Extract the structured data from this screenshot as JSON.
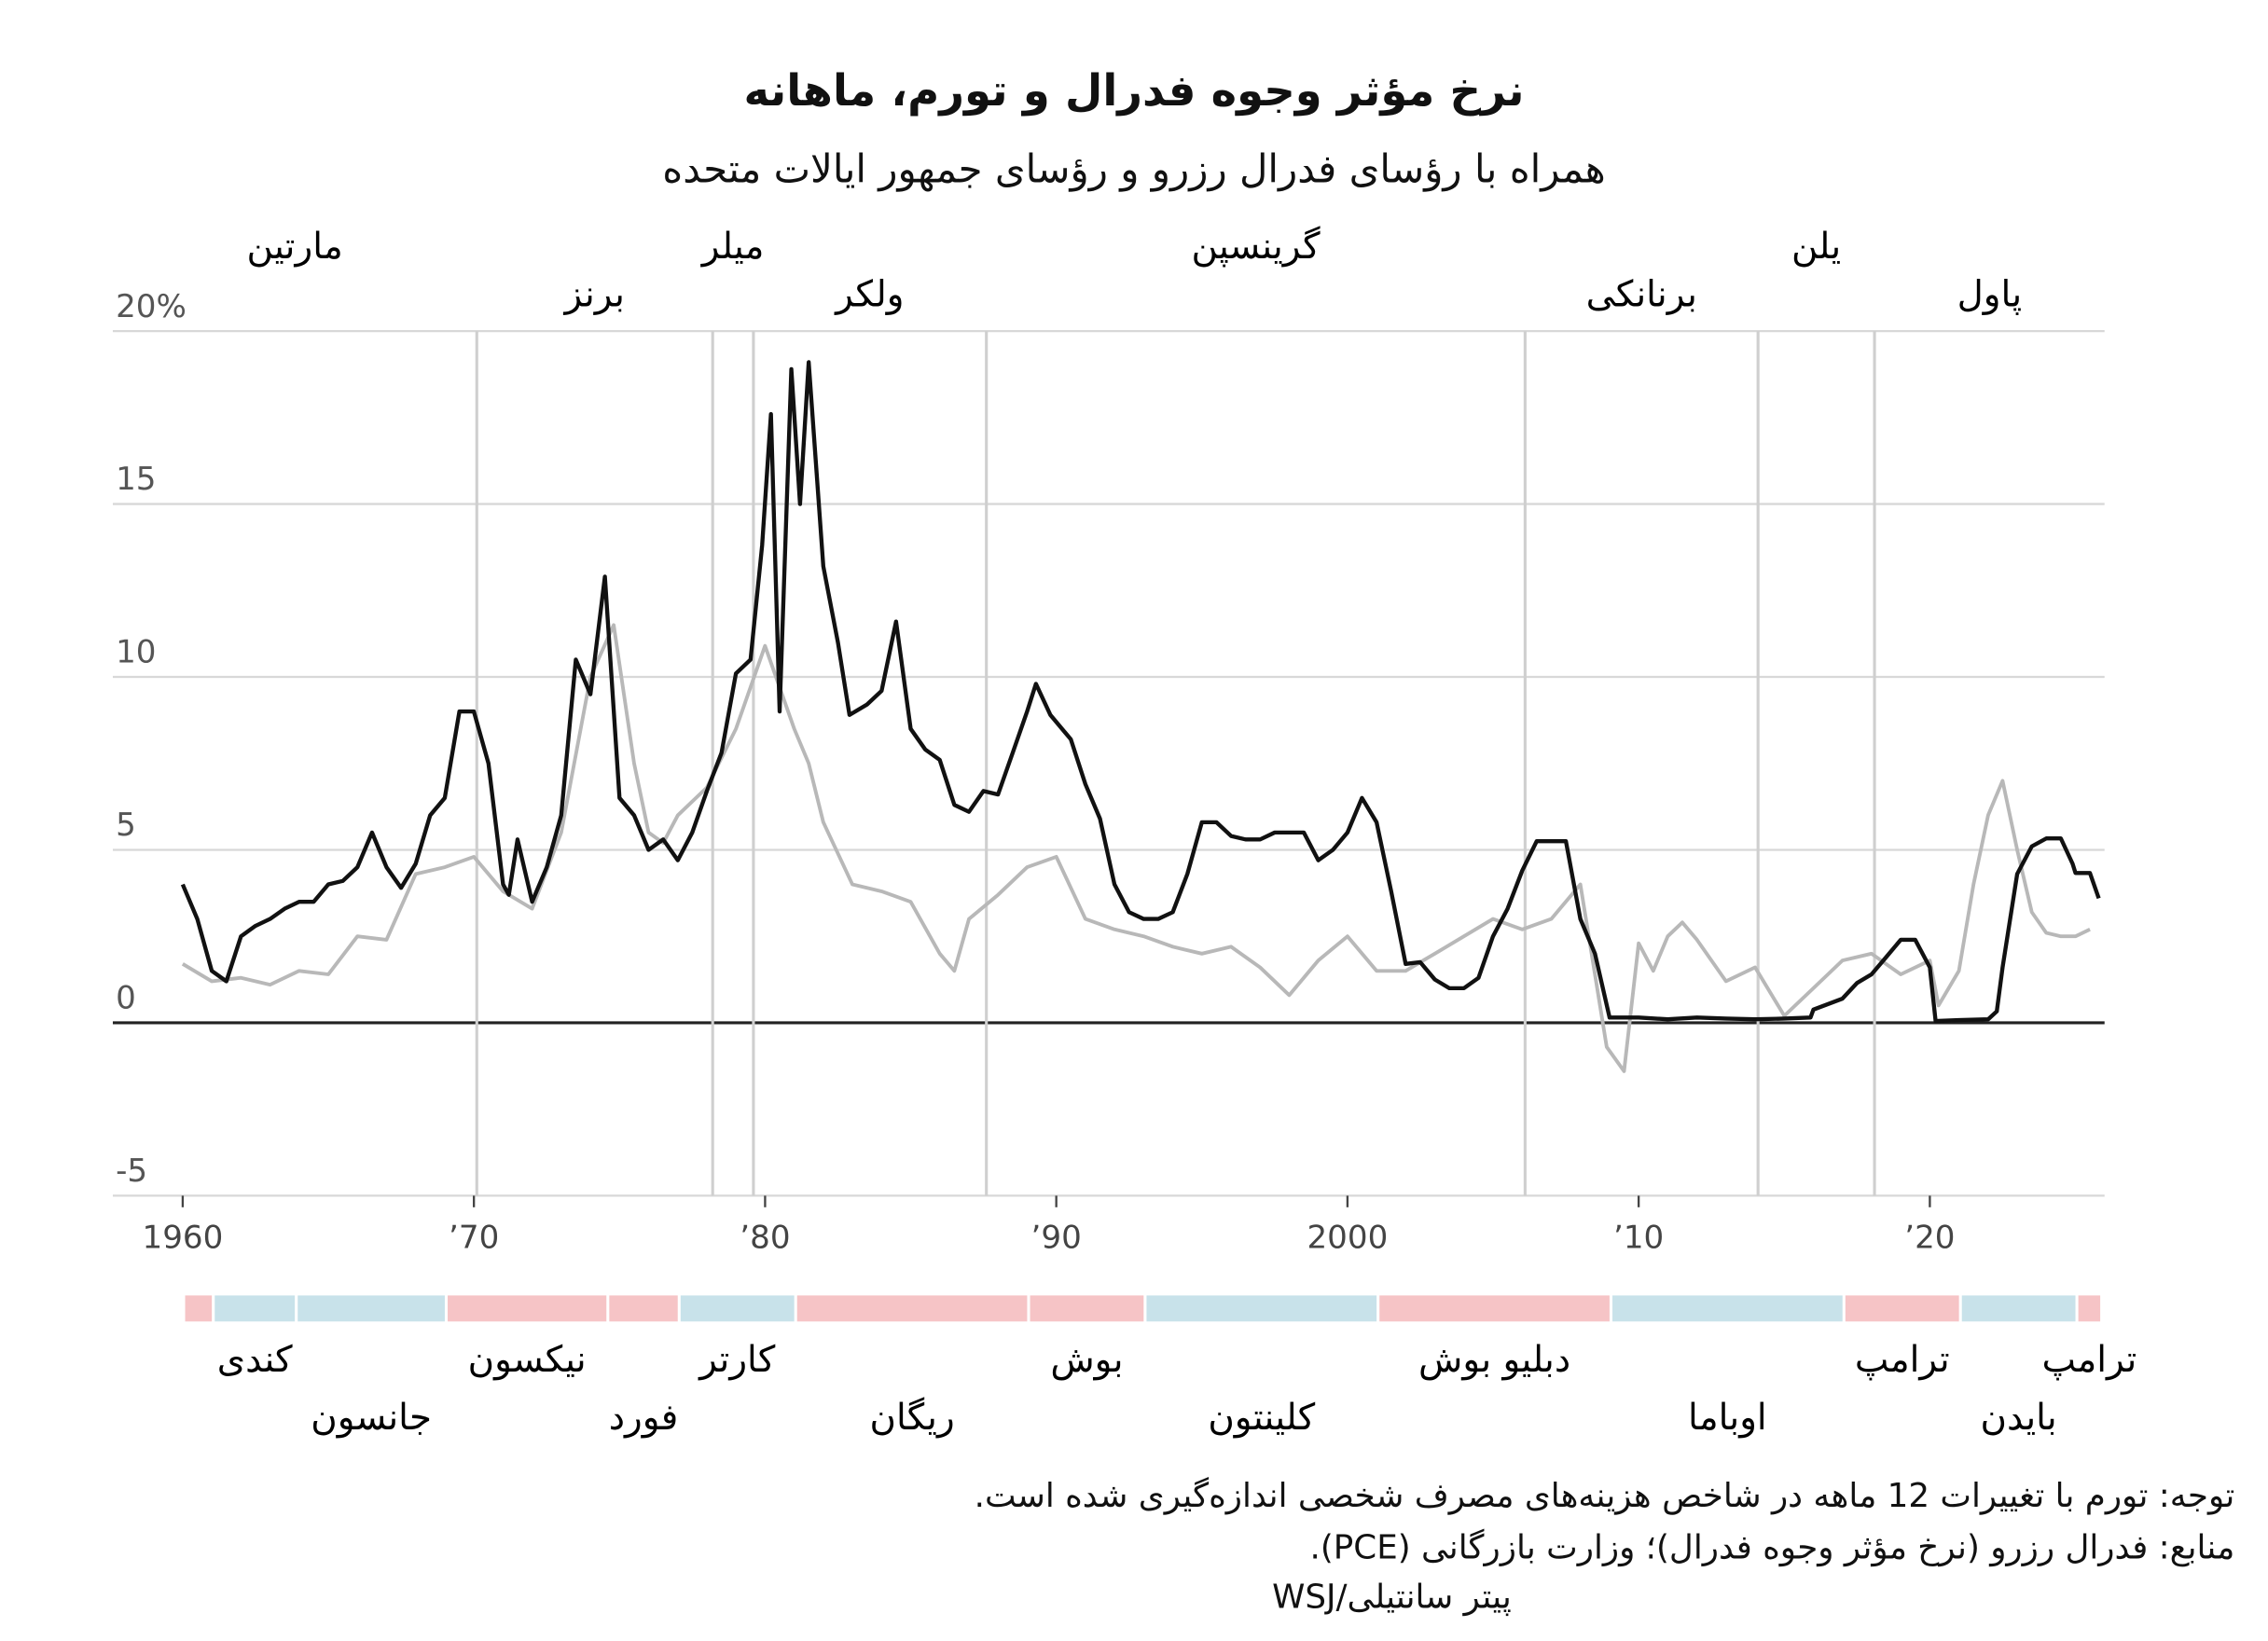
{
  "chart_data": {
    "type": "line",
    "title": "نرخ مؤثر وجوه فدرال و تورم، ماهانه",
    "subtitle": "همراه با رؤسای فدرال رزرو و رؤسای جمهور ایالات متحده",
    "notes": [
      "توجه: تورم با تغییرات 12 ماهه در شاخص هزینه‌های مصرف شخصی اندازه‌گیری شده است.",
      "منابع: فدرال رزرو (نرخ مؤثر وجوه فدرال)؛ وزارت بازرگانی (PCE).",
      "پیتر سانتیلی/WSJ"
    ],
    "xlim": [
      1957.6,
      2026
    ],
    "xticks": [
      1960,
      {
        "value": 1970,
        "label": "’70"
      },
      {
        "value": 1980,
        "label": "’80"
      },
      {
        "value": 1990,
        "label": "’90"
      },
      2000,
      {
        "value": 2010,
        "label": "’10"
      },
      {
        "value": 2020,
        "label": "’20"
      }
    ],
    "ylim": [
      -5,
      20
    ],
    "yticks": [
      -5,
      0,
      5,
      10,
      15,
      {
        "value": 20,
        "label": "20%"
      }
    ],
    "grid": true,
    "series": [
      {
        "color": "#b8b8b8",
        "x": [
          1960,
          1961,
          1962,
          1963,
          1964,
          1965,
          1966,
          1967,
          1968,
          1969,
          1970,
          1971,
          1972,
          1973,
          1974,
          1974.8,
          1975.5,
          1976,
          1976.5,
          1977,
          1978,
          1979,
          1980,
          1981,
          1981.5,
          1982,
          1983,
          1984,
          1985,
          1986,
          1986.5,
          1987,
          1988,
          1989,
          1990,
          1991,
          1992,
          1993,
          1994,
          1995,
          1996,
          1997,
          1998,
          1999,
          2000,
          2001,
          2002,
          2003,
          2004,
          2005,
          2006,
          2007,
          2008,
          2008.9,
          2009.5,
          2010,
          2010.5,
          2011,
          2011.5,
          2012,
          2013,
          2014,
          2015,
          2016,
          2017,
          2018,
          2019,
          2020,
          2020.3,
          2021,
          2021.5,
          2022,
          2022.5,
          2023,
          2023.5,
          2024,
          2024.5,
          2025,
          2025.5
        ],
        "values": [
          1.7,
          1.2,
          1.3,
          1.1,
          1.5,
          1.4,
          2.5,
          2.4,
          4.3,
          4.5,
          4.8,
          3.8,
          3.3,
          5.5,
          10.0,
          11.5,
          7.5,
          5.5,
          5.2,
          6.0,
          6.8,
          8.5,
          10.9,
          8.5,
          7.5,
          5.8,
          4.0,
          3.8,
          3.5,
          2.0,
          1.5,
          3.0,
          3.7,
          4.5,
          4.8,
          3.0,
          2.7,
          2.5,
          2.2,
          2.0,
          2.2,
          1.6,
          0.8,
          1.8,
          2.5,
          1.5,
          1.5,
          2.0,
          2.5,
          3.0,
          2.7,
          3.0,
          4.0,
          -0.7,
          -1.4,
          2.3,
          1.5,
          2.5,
          2.9,
          2.4,
          1.2,
          1.6,
          0.2,
          1.0,
          1.8,
          2.0,
          1.4,
          1.8,
          0.5,
          1.5,
          4.0,
          6.0,
          7.0,
          5.0,
          3.2,
          2.6,
          2.5,
          2.5,
          2.7
        ]
      },
      {
        "color": "#111111",
        "x": [
          1960,
          1960.5,
          1961,
          1961.5,
          1962,
          1962.5,
          1963,
          1963.5,
          1964,
          1964.5,
          1965,
          1965.5,
          1966,
          1966.5,
          1967,
          1967.5,
          1968,
          1968.5,
          1969,
          1969.5,
          1970,
          1970.5,
          1971,
          1971.2,
          1971.5,
          1972,
          1972.5,
          1973,
          1973.5,
          1974,
          1974.5,
          1975,
          1975.5,
          1976,
          1976.5,
          1977,
          1977.5,
          1978,
          1978.5,
          1979,
          1979.5,
          1979.9,
          1980.2,
          1980.5,
          1980.9,
          1981.2,
          1981.5,
          1982,
          1982.5,
          1982.9,
          1983.5,
          1984,
          1984.5,
          1985,
          1985.5,
          1986,
          1986.5,
          1987,
          1987.5,
          1988,
          1988.5,
          1989,
          1989.3,
          1989.8,
          1990.5,
          1991,
          1991.5,
          1992,
          1992.5,
          1993,
          1993.5,
          1994,
          1994.5,
          1995,
          1995.5,
          1996,
          1996.5,
          1997,
          1997.5,
          1998,
          1998.5,
          1999,
          1999.5,
          2000,
          2000.5,
          2001,
          2001.5,
          2002,
          2002.5,
          2003,
          2003.5,
          2004,
          2004.5,
          2005,
          2005.5,
          2006,
          2006.5,
          2007,
          2007.5,
          2008,
          2008.5,
          2009,
          2010,
          2011,
          2012,
          2013,
          2014,
          2015,
          2015.9,
          2016,
          2017,
          2017.5,
          2018,
          2018.5,
          2019,
          2019.5,
          2020,
          2020.2,
          2021,
          2022,
          2022.3,
          2022.5,
          2023,
          2023.5,
          2024,
          2024.5,
          2024.9,
          2025,
          2025.5,
          2025.8
        ],
        "values": [
          4.0,
          3.0,
          1.5,
          1.2,
          2.5,
          2.8,
          3.0,
          3.3,
          3.5,
          3.5,
          4.0,
          4.1,
          4.5,
          5.5,
          4.5,
          3.9,
          4.6,
          6.0,
          6.5,
          9.0,
          9.0,
          7.5,
          4.0,
          3.7,
          5.3,
          3.5,
          4.5,
          6.0,
          10.5,
          9.5,
          12.9,
          6.5,
          6.0,
          5.0,
          5.3,
          4.7,
          5.5,
          6.7,
          7.8,
          10.1,
          10.5,
          13.8,
          17.6,
          9.0,
          18.9,
          15.0,
          19.1,
          13.2,
          11.0,
          8.9,
          9.2,
          9.6,
          11.6,
          8.5,
          7.9,
          7.6,
          6.3,
          6.1,
          6.7,
          6.6,
          7.8,
          9.0,
          9.8,
          8.9,
          8.2,
          6.9,
          5.9,
          4.0,
          3.2,
          3.0,
          3.0,
          3.2,
          4.3,
          5.8,
          5.8,
          5.4,
          5.3,
          5.3,
          5.5,
          5.5,
          5.5,
          4.7,
          5.0,
          5.5,
          6.5,
          5.8,
          3.8,
          1.7,
          1.75,
          1.25,
          1.0,
          1.0,
          1.3,
          2.5,
          3.3,
          4.4,
          5.25,
          5.25,
          5.25,
          3.0,
          2.0,
          0.15,
          0.15,
          0.1,
          0.15,
          0.12,
          0.1,
          0.12,
          0.15,
          0.38,
          0.7,
          1.15,
          1.4,
          1.9,
          2.4,
          2.4,
          1.6,
          0.05,
          0.08,
          0.1,
          0.33,
          1.6,
          4.3,
          5.1,
          5.33,
          5.33,
          4.6,
          4.33,
          4.33,
          3.6
        ]
      }
    ],
    "fed_chairs": [
      {
        "name": "مارتین",
        "start": 1951.3
      },
      {
        "name": "برنز",
        "start": 1970.1
      },
      {
        "name": "میلر",
        "start": 1978.2
      },
      {
        "name": "ولکر",
        "start": 1979.6
      },
      {
        "name": "گرینسپن",
        "start": 1987.6
      },
      {
        "name": "برنانکی",
        "start": 2006.1
      },
      {
        "name": "یلن",
        "start": 2014.1
      },
      {
        "name": "پاول",
        "start": 2018.1
      }
    ],
    "presidents": [
      {
        "name": null,
        "start": 1953.1,
        "color": "#f6c4c6"
      },
      {
        "name": "کندی",
        "start": 1961.05,
        "color": "#c8e2ea"
      },
      {
        "name": "جانسون",
        "start": 1963.9,
        "color": "#c8e2ea"
      },
      {
        "name": "نیکسون",
        "start": 1969.05,
        "color": "#f6c4c6"
      },
      {
        "name": "فورد",
        "start": 1974.6,
        "color": "#f6c4c6"
      },
      {
        "name": "کارتر",
        "start": 1977.05,
        "color": "#c8e2ea"
      },
      {
        "name": "ریگان",
        "start": 1981.05,
        "color": "#f6c4c6"
      },
      {
        "name": "بوش",
        "start": 1989.05,
        "color": "#f6c4c6"
      },
      {
        "name": "کلینتون",
        "start": 1993.05,
        "color": "#c8e2ea"
      },
      {
        "name": "دبلیو بوش",
        "start": 2001.05,
        "color": "#f6c4c6"
      },
      {
        "name": "اوباما",
        "start": 2009.05,
        "color": "#c8e2ea"
      },
      {
        "name": "ترامپ",
        "start": 2017.05,
        "color": "#f6c4c6"
      },
      {
        "name": "بایدن",
        "start": 2021.05,
        "color": "#c8e2ea"
      },
      {
        "name": "ترامپ",
        "start": 2025.05,
        "color": "#f6c4c6"
      }
    ]
  }
}
